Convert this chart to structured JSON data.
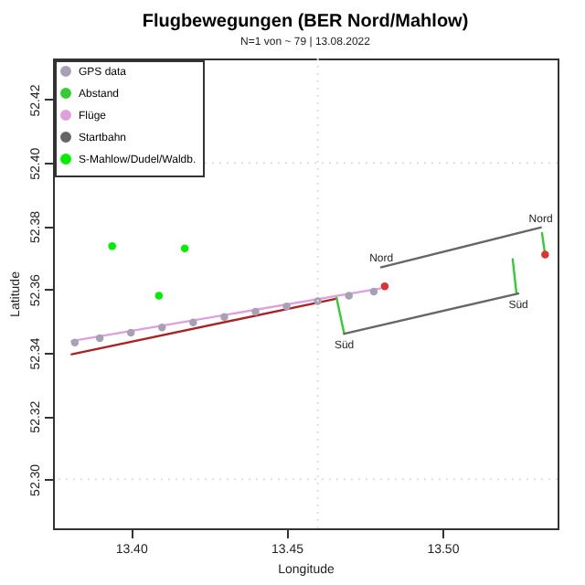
{
  "chart_data": {
    "type": "scatter",
    "title": "Flugbewegungen (BER Nord/Mahlow)",
    "subtitle": "N=1 von ~ 79 | 13.08.2022",
    "xlabel": "Longitude",
    "ylabel": "Latitude",
    "xlim": [
      13.375,
      13.537
    ],
    "ylim": [
      52.2845,
      52.433
    ],
    "xticks": [
      {
        "value": 13.4,
        "label": "13.40"
      },
      {
        "value": 13.45,
        "label": "13.45"
      },
      {
        "value": 13.5,
        "label": "13.50"
      }
    ],
    "yticks": [
      {
        "value": 52.3,
        "label": "52.30"
      },
      {
        "value": 52.32,
        "label": "52.32"
      },
      {
        "value": 52.34,
        "label": "52.34"
      },
      {
        "value": 52.36,
        "label": "52.36"
      },
      {
        "value": 52.38,
        "label": "52.38"
      },
      {
        "value": 52.4,
        "label": "52.40"
      },
      {
        "value": 52.42,
        "label": "52.42"
      }
    ],
    "legend": "top left",
    "ref_lines": [
      {
        "axis": "x",
        "value": 13.46,
        "color": "#dddddd",
        "line_style": "dotted"
      },
      {
        "axis": "y",
        "value": 52.3,
        "color": "#dddddd",
        "line_style": "dotted"
      },
      {
        "axis": "y",
        "value": 52.4,
        "color": "#dddddd",
        "line_style": "dotted"
      }
    ],
    "series": [
      {
        "name": "GPS data",
        "color": "#a8a0b4",
        "x": [
          13.382,
          13.39,
          13.4,
          13.41,
          13.42,
          13.43,
          13.44,
          13.45,
          13.46,
          13.47,
          13.478
        ],
        "values": [
          52.3432,
          52.3446,
          52.3463,
          52.348,
          52.3496,
          52.3513,
          52.353,
          52.3546,
          52.3563,
          52.358,
          52.3593
        ]
      },
      {
        "name": "Abstand",
        "type": "line",
        "color": "#33cc33",
        "x": [
          13.466,
          13.4685,
          null,
          13.5226,
          13.5238,
          null,
          13.532,
          13.533
        ],
        "values": [
          52.3575,
          52.346,
          null,
          52.3695,
          52.3587,
          null,
          52.3778,
          52.371
        ]
      },
      {
        "name": "Flüge",
        "type": "line",
        "color": "#dda0dd",
        "x": [
          13.381,
          13.48
        ],
        "values": [
          52.3437,
          52.3603
        ]
      },
      {
        "name": "Startbahn",
        "type": "line",
        "color": "#666666",
        "x": [
          13.4685,
          13.5244,
          null,
          13.4804,
          13.5316
        ],
        "values": [
          52.346,
          52.3587,
          null,
          52.367,
          52.3796
        ]
      },
      {
        "name": "S-Mahlow/Dudel/Waldb.",
        "color": "#00ee00",
        "x": [
          13.394,
          13.4173,
          13.409
        ],
        "values": [
          52.3737,
          52.373,
          52.358
        ]
      },
      {
        "type": "line",
        "color": "#aa2222",
        "x": [
          13.381,
          13.4655
        ],
        "values": [
          52.3395,
          52.357
        ]
      },
      {
        "color": "#dd3333",
        "x": [
          13.4815,
          13.533
        ],
        "values": [
          52.361,
          52.371
        ]
      }
    ],
    "annotations": [
      {
        "text": "Nord",
        "x": 13.4804,
        "y": 52.367
      },
      {
        "text": "Nord",
        "x": 13.5316,
        "y": 52.3796
      },
      {
        "text": "Süd",
        "x": 13.4685,
        "y": 52.346
      },
      {
        "text": "Süd",
        "x": 13.5244,
        "y": 52.3587
      }
    ]
  }
}
